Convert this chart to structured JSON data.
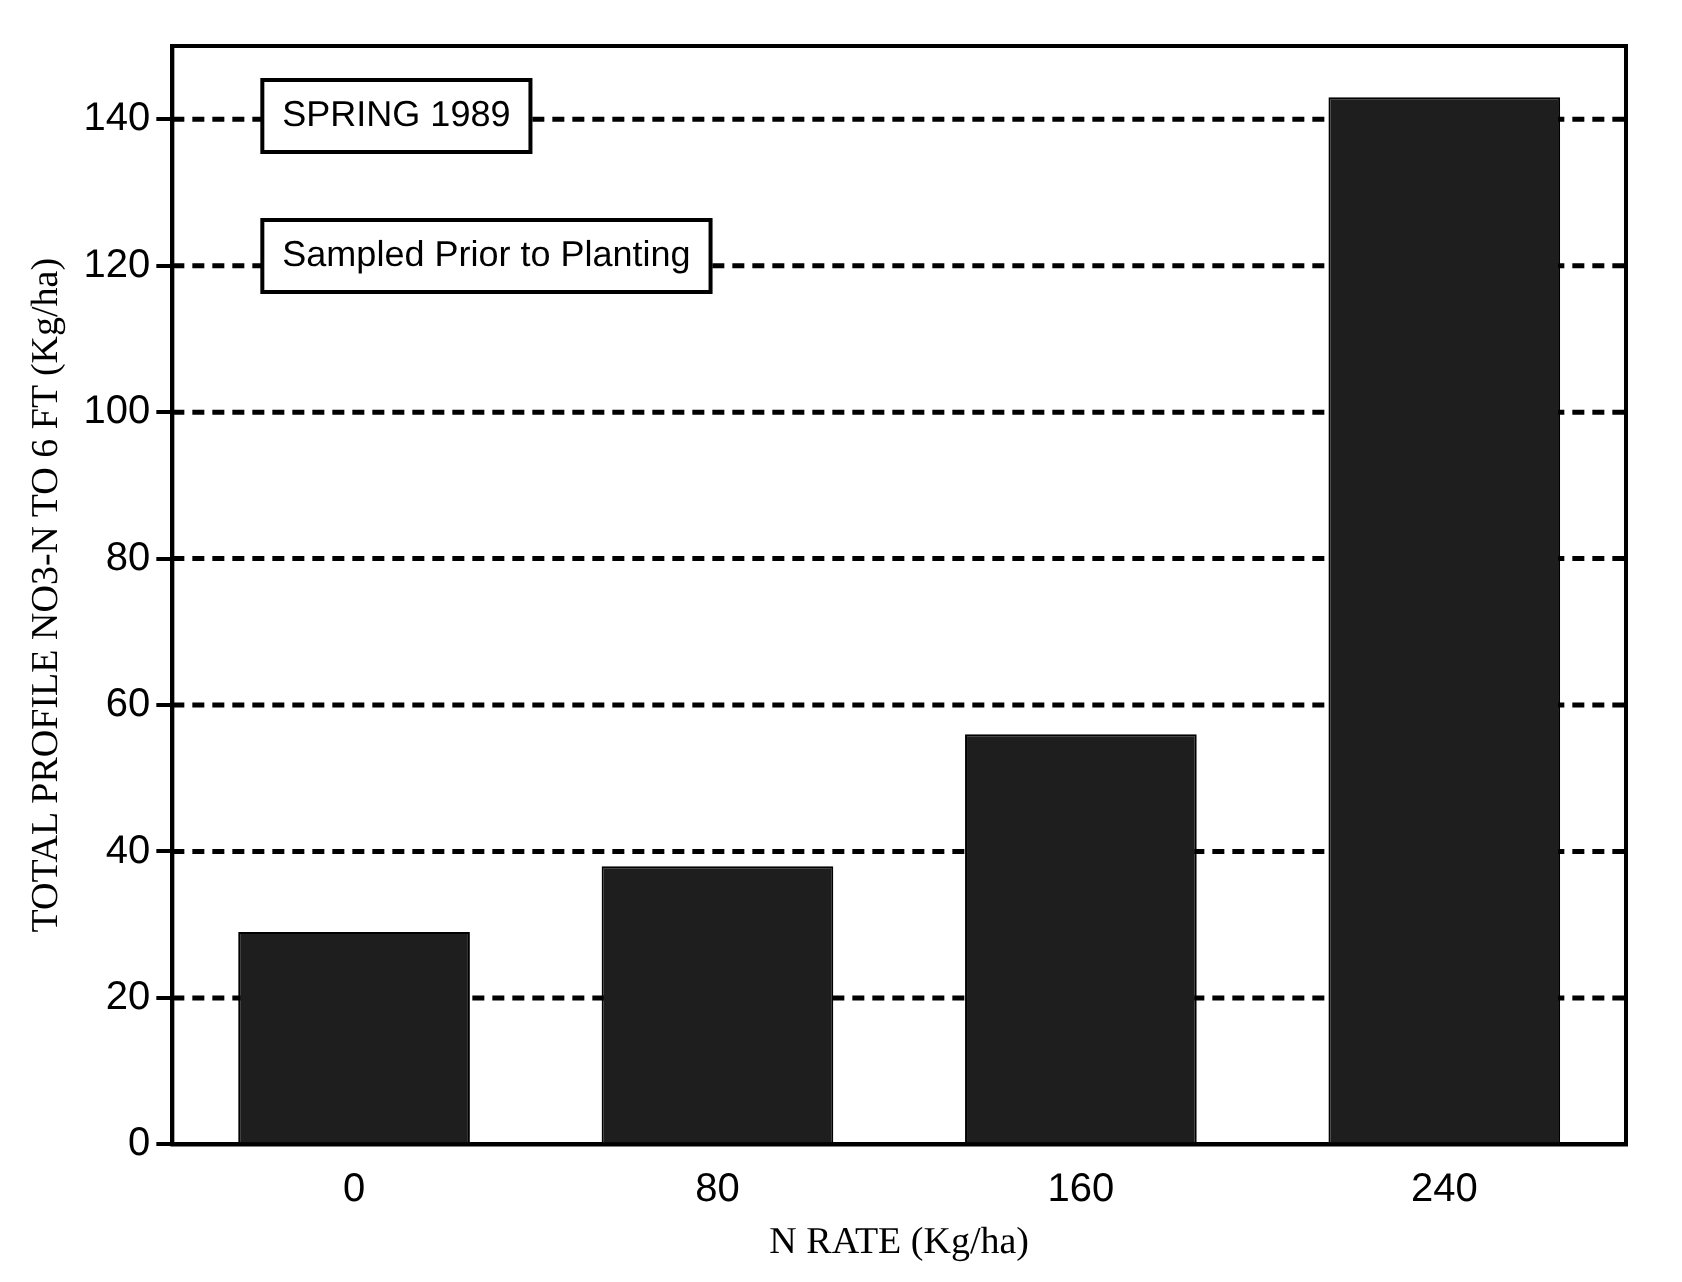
{
  "chart_data": {
    "type": "bar",
    "xlabel": "N RATE (Kg/ha)",
    "ylabel": "TOTAL PROFILE NO3-N TO 6 FT (Kg/ha)",
    "categories": [
      "0",
      "80",
      "160",
      "240"
    ],
    "values": [
      29,
      38,
      56,
      143
    ],
    "color": "#1e1e1e",
    "ylim": [
      0,
      150
    ],
    "yticks": [
      0,
      20,
      40,
      60,
      80,
      100,
      120,
      140
    ],
    "grid": "y",
    "annotations": [
      "SPRING 1989",
      "Sampled Prior to Planting"
    ]
  }
}
